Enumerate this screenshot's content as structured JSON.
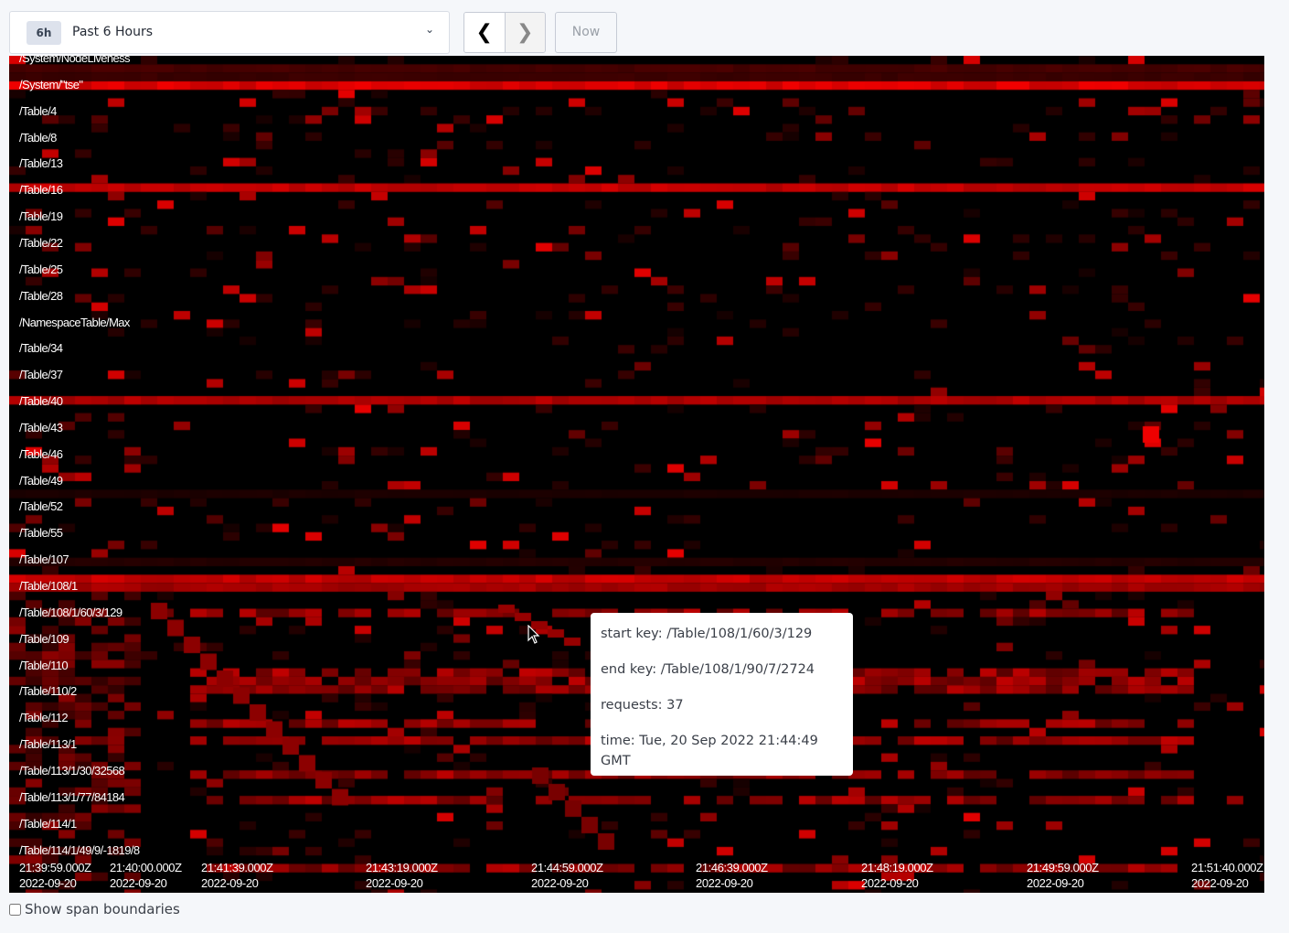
{
  "time_range": {
    "badge": "6h",
    "label": "Past 6 Hours",
    "icon": "chevron-down-icon"
  },
  "nav": {
    "prev_icon": "chevron-left-icon",
    "next_icon": "chevron-right-icon",
    "now_label": "Now"
  },
  "heatmap": {
    "color_scale": [
      "#000000",
      "#ff0000"
    ],
    "keys": [
      "/System/NodeLiveness",
      "/System/\"tse\"",
      "/Table/4",
      "/Table/8",
      "/Table/13",
      "/Table/16",
      "/Table/19",
      "/Table/22",
      "/Table/25",
      "/Table/28",
      "/NamespaceTable/Max",
      "/Table/34",
      "/Table/37",
      "/Table/40",
      "/Table/43",
      "/Table/46",
      "/Table/49",
      "/Table/52",
      "/Table/55",
      "/Table/107",
      "/Table/108/1",
      "/Table/108/1/60/3/129",
      "/Table/109",
      "/Table/110",
      "/Table/110/2",
      "/Table/112",
      "/Table/113/1",
      "/Table/113/1/30/32568",
      "/Table/113/1/77/84184",
      "/Table/114/1",
      "/Table/114/1/49/9/-1819/8"
    ],
    "time_ticks": [
      {
        "time": "21:39:59.000Z",
        "date": "2022-09-20"
      },
      {
        "time": "21:40:00.000Z",
        "date": "2022-09-20"
      },
      {
        "time": "21:41:39.000Z",
        "date": "2022-09-20"
      },
      {
        "time": "21:43:19.000Z",
        "date": "2022-09-20"
      },
      {
        "time": "21:44:59.000Z",
        "date": "2022-09-20"
      },
      {
        "time": "21:46:39.000Z",
        "date": "2022-09-20"
      },
      {
        "time": "21:48:19.000Z",
        "date": "2022-09-20"
      },
      {
        "time": "21:49:59.000Z",
        "date": "2022-09-20"
      },
      {
        "time": "21:51:40.000Z",
        "date": "2022-09-20"
      }
    ]
  },
  "tooltip": {
    "start_key": "start key: /Table/108/1/60/3/129",
    "end_key": "end key: /Table/108/1/90/7/2724",
    "requests": "requests: 37",
    "time": "time: Tue, 20 Sep 2022 21:44:49 GMT"
  },
  "footer": {
    "checkbox_label": "Show span boundaries",
    "checked": false
  }
}
